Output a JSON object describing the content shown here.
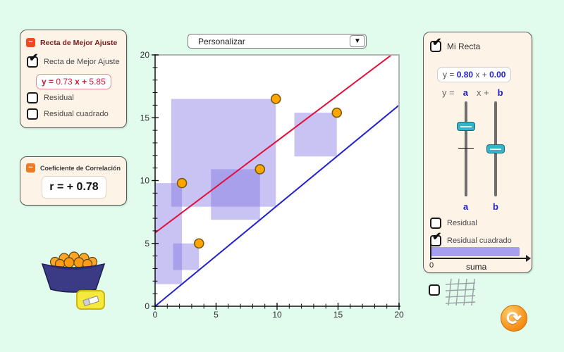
{
  "icons": {
    "check": "✔",
    "minus": "−",
    "dropdown_arrow": "▼",
    "refresh": "⟳"
  },
  "fit_panel": {
    "title": "Recta de Mejor Ajuste",
    "show_line": {
      "label": "Recta de Mejor Ajuste",
      "checked": true
    },
    "equation": {
      "prefix": "y =",
      "slope": "0.73",
      "mid": "x +",
      "intercept": "5.85"
    },
    "residual": {
      "label": "Residual",
      "checked": false
    },
    "residual_sq": {
      "label": "Residual cuadrado",
      "checked": false
    }
  },
  "corr_panel": {
    "title": "Coeficiente de Correlación",
    "value": "r = + 0.78"
  },
  "dropdown": {
    "value": "Personalizar"
  },
  "my_line_panel": {
    "title": {
      "label": "Mi Recta",
      "checked": true
    },
    "equation": {
      "prefix": "y =",
      "slope": "0.80",
      "mid": "x +",
      "intercept": "0.00"
    },
    "formula": {
      "prefix": "y =",
      "a": "a",
      "mid": "x +",
      "b": "b"
    },
    "slider_a_label": "a",
    "slider_b_label": "b",
    "residual": {
      "label": "Residual",
      "checked": false
    },
    "residual_sq": {
      "label": "Residual cuadrado",
      "checked": true
    },
    "suma": {
      "zero_label": "0",
      "label": "suma",
      "fill_percent": 93
    }
  },
  "bottom_right": {
    "grid_toggle": {
      "checked": false
    }
  },
  "chart_data": {
    "type": "scatter",
    "points": [
      [
        2.2,
        9.8
      ],
      [
        3.6,
        5.0
      ],
      [
        8.6,
        10.9
      ],
      [
        9.9,
        16.5
      ],
      [
        14.9,
        15.4
      ]
    ],
    "xlim": [
      0,
      20
    ],
    "ylim": [
      0,
      20
    ],
    "major_ticks": [
      0,
      5,
      10,
      15,
      20
    ],
    "minor_tick_step": 1,
    "lines": [
      {
        "name": "best-fit-line",
        "slope": 0.73,
        "intercept": 5.85,
        "color": "#e3103c"
      },
      {
        "name": "my-line",
        "slope": 0.8,
        "intercept": 0.0,
        "color": "#2222cc"
      }
    ],
    "residual_squares": {
      "from_line": "my-line",
      "color": "rgba(124,112,224,0.42)"
    },
    "point_style": {
      "fill": "#FFA500",
      "stroke": "#7a5a10"
    }
  }
}
